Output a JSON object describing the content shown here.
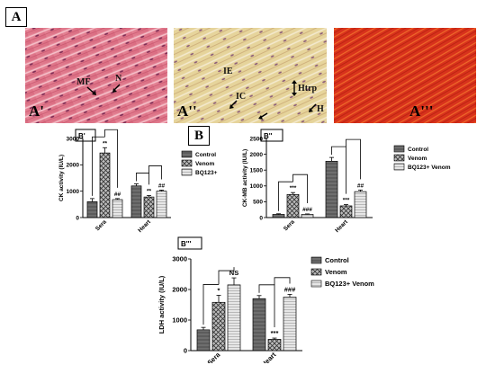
{
  "figure": {
    "panel_a_label": "A",
    "panel_b_label": "B",
    "micrographs": [
      {
        "label": "A'",
        "annotations": [
          "MF",
          "N"
        ]
      },
      {
        "label": "A''",
        "annotations": [
          "IE",
          "IC",
          "Htrp",
          "H"
        ]
      },
      {
        "label": "A'''",
        "annotations": []
      }
    ]
  },
  "colors": {
    "control": "#5c5c5c",
    "venom": "#bdbdbd",
    "bq123": "#e6e6e6",
    "tissue_pink": "#e07a8c",
    "tissue_yellow": "#e2cf92",
    "tissue_red": "#d8321c"
  },
  "chart_data": [
    {
      "type": "bar",
      "panel": "B'",
      "title": "",
      "xlabel": "",
      "ylabel": "CK activity (IU/L)",
      "ylim": [
        0,
        3000
      ],
      "yticks": [
        "0",
        "1000",
        "2000",
        "3000"
      ],
      "categories": [
        "Sera",
        "Heart"
      ],
      "series": [
        {
          "name": "Control",
          "values": [
            600,
            1200
          ],
          "errors": [
            120,
            80
          ]
        },
        {
          "name": "Venom",
          "values": [
            2450,
            780
          ],
          "errors": [
            200,
            60
          ]
        },
        {
          "name": "BQ123+",
          "values": [
            680,
            1000
          ],
          "errors": [
            40,
            40
          ]
        }
      ],
      "significance": [
        {
          "category": "Sera",
          "series": 1,
          "mark": "**"
        },
        {
          "category": "Sera",
          "series": 2,
          "mark": "##"
        },
        {
          "category": "Heart",
          "series": 1,
          "mark": "**"
        },
        {
          "category": "Heart",
          "series": 2,
          "mark": "##"
        }
      ],
      "legend": "right"
    },
    {
      "type": "bar",
      "panel": "B''",
      "title": "",
      "xlabel": "",
      "ylabel": "CK-MB activity (IU/L)",
      "ylim": [
        0,
        2500
      ],
      "yticks": [
        "0",
        "500",
        "1000",
        "1500",
        "2000",
        "2500"
      ],
      "categories": [
        "Sera",
        "Heart"
      ],
      "series": [
        {
          "name": "Control",
          "values": [
            100,
            1780
          ],
          "errors": [
            20,
            120
          ]
        },
        {
          "name": "Venom",
          "values": [
            730,
            370
          ],
          "errors": [
            60,
            40
          ]
        },
        {
          "name": "BQ123+ Venom",
          "values": [
            100,
            820
          ],
          "errors": [
            15,
            50
          ]
        }
      ],
      "significance": [
        {
          "category": "Sera",
          "series": 1,
          "mark": "***"
        },
        {
          "category": "Sera",
          "series": 2,
          "mark": "###"
        },
        {
          "category": "Heart",
          "series": 1,
          "mark": "***"
        },
        {
          "category": "Heart",
          "series": 2,
          "mark": "##"
        }
      ],
      "legend": "right"
    },
    {
      "type": "bar",
      "panel": "B'''",
      "title": "",
      "xlabel": "",
      "ylabel": "LDH activity (IU/L)",
      "ylim": [
        0,
        3000
      ],
      "yticks": [
        "0",
        "1000",
        "2000",
        "3000"
      ],
      "categories": [
        "Sera",
        "Heart"
      ],
      "series": [
        {
          "name": "Control",
          "values": [
            680,
            1700
          ],
          "errors": [
            80,
            100
          ]
        },
        {
          "name": "Venom",
          "values": [
            1580,
            370
          ],
          "errors": [
            230,
            40
          ]
        },
        {
          "name": "BQ123+ Venom",
          "values": [
            2150,
            1750
          ],
          "errors": [
            230,
            90
          ]
        }
      ],
      "significance": [
        {
          "category": "Sera",
          "series": 1,
          "mark": "*"
        },
        {
          "category": "Sera",
          "series": 2,
          "mark": "NS"
        },
        {
          "category": "Heart",
          "series": 1,
          "mark": "***"
        },
        {
          "category": "Heart",
          "series": 2,
          "mark": "###"
        }
      ],
      "legend": "right"
    }
  ]
}
